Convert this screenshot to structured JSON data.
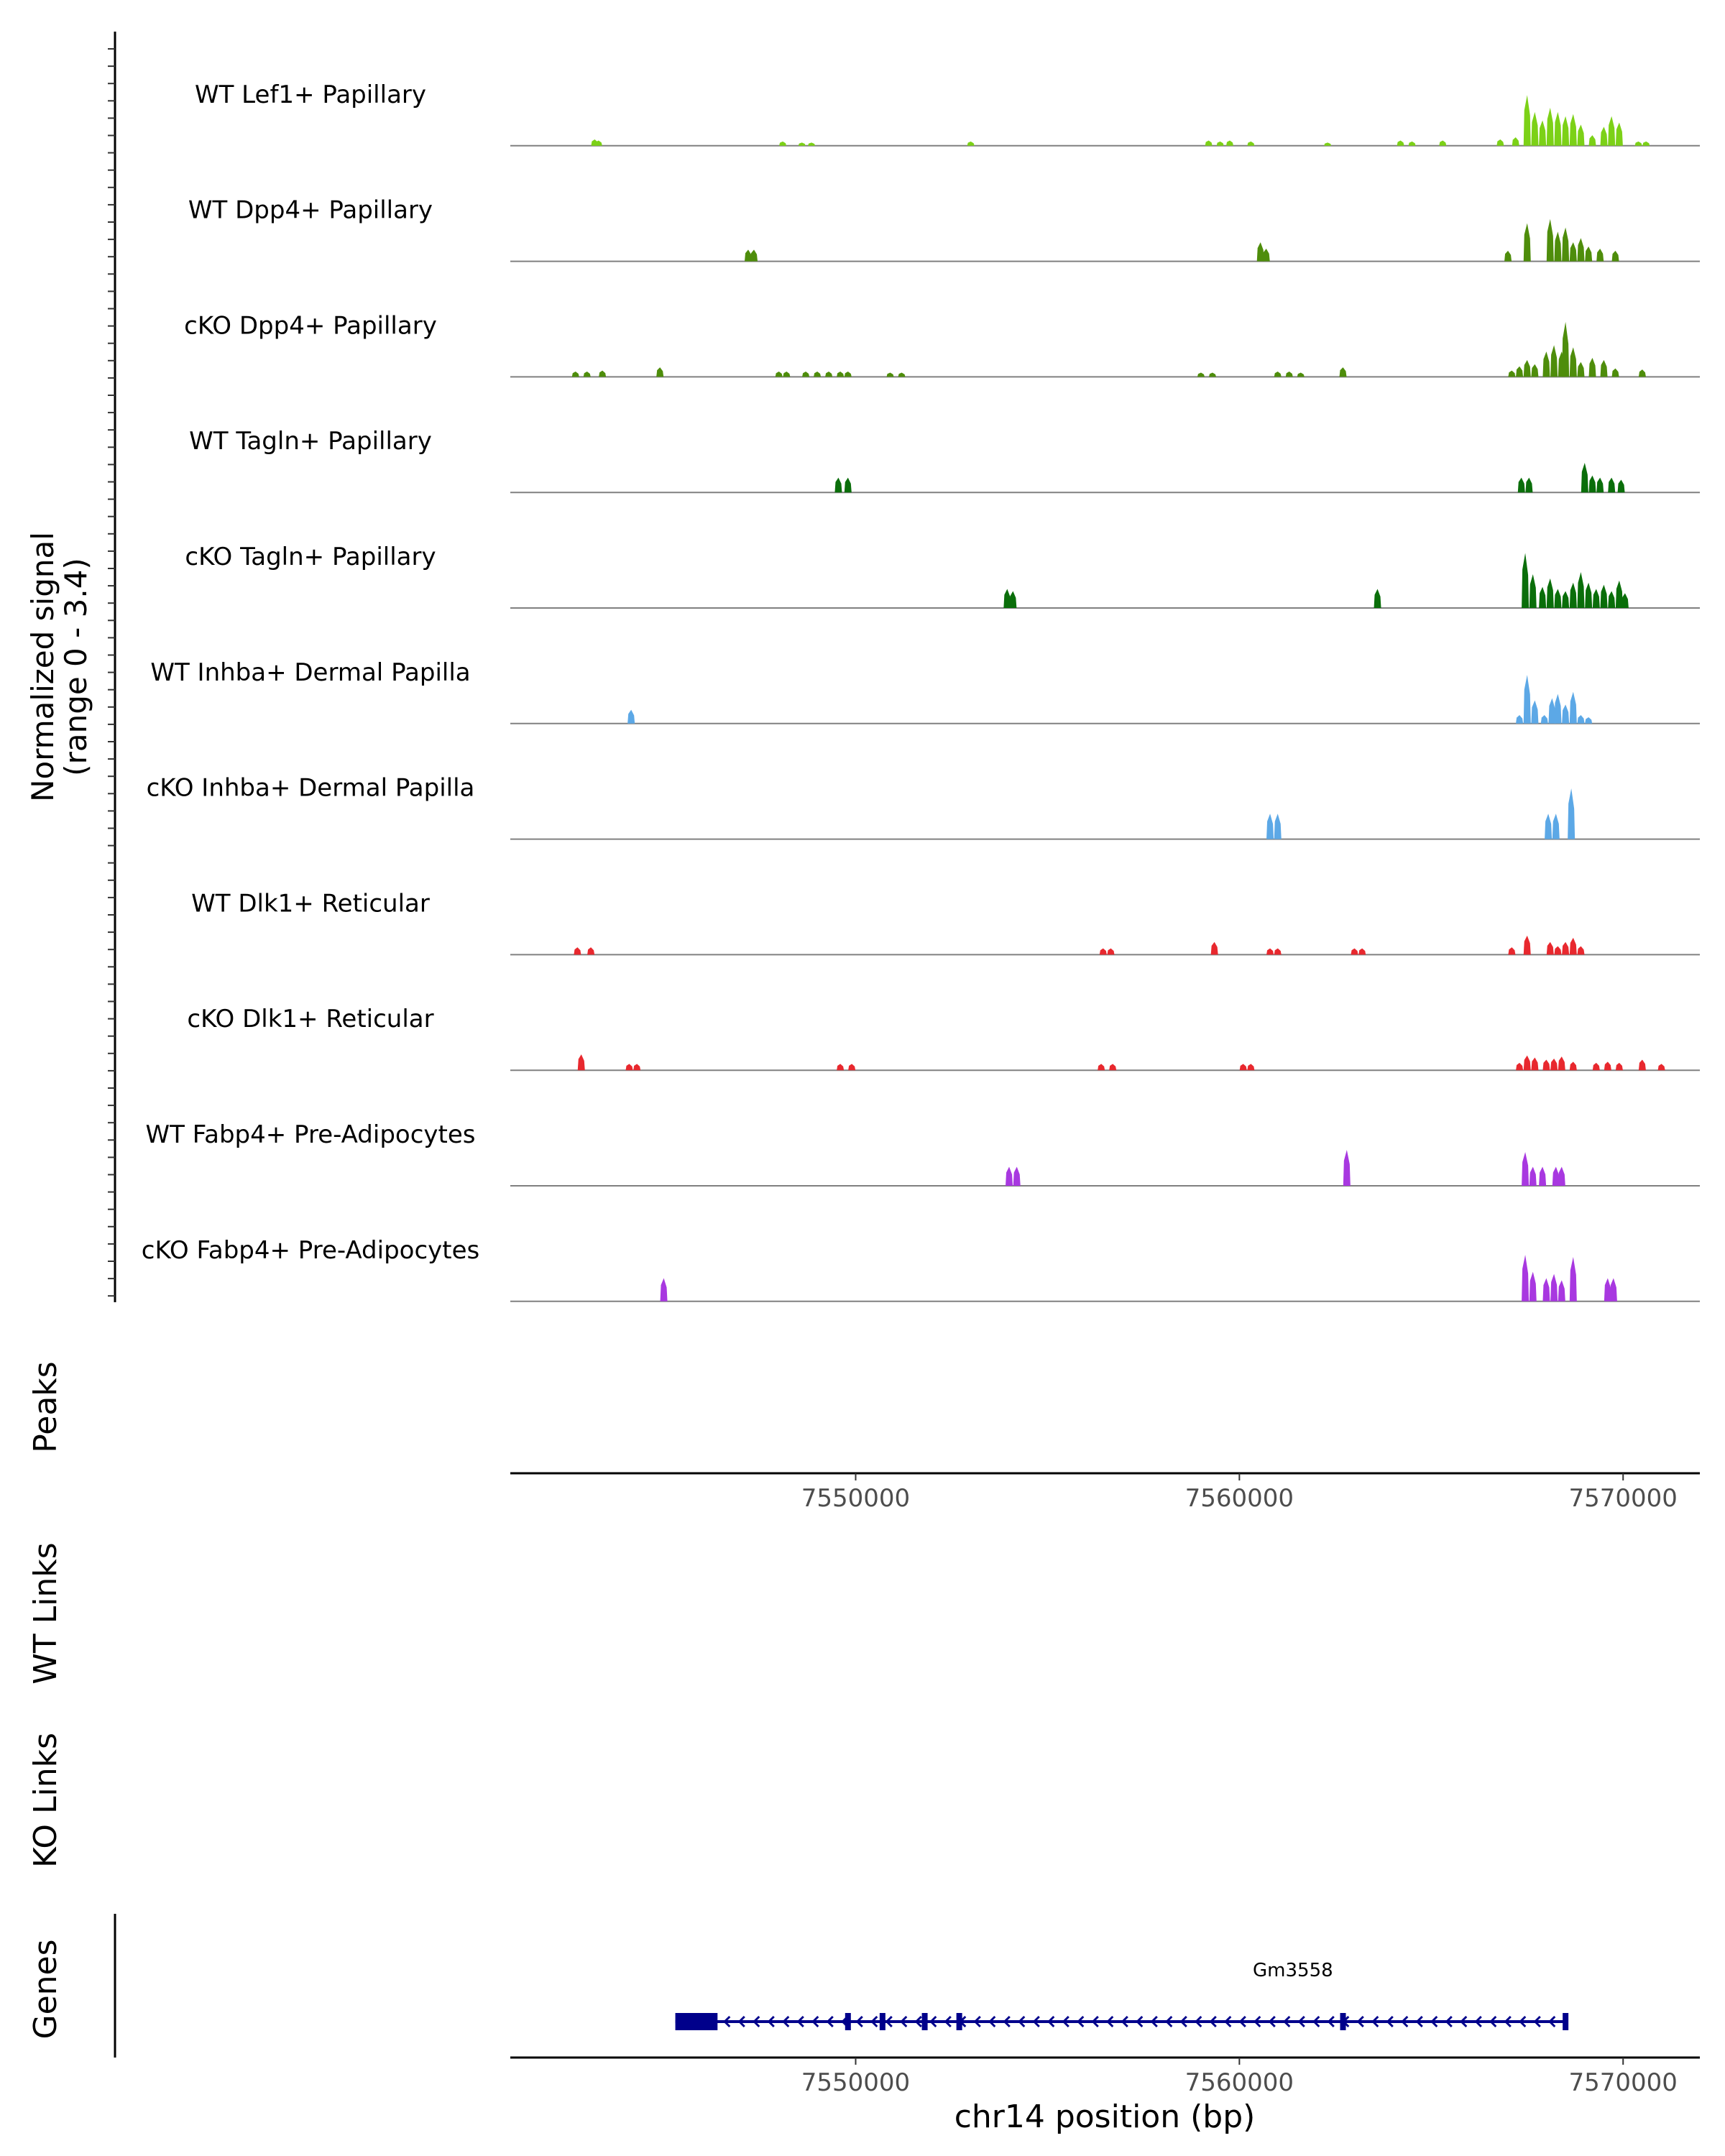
{
  "chart_data": {
    "type": "area",
    "subtype": "genome-coverage-tracks",
    "chromosome": "chr14",
    "xlim": [
      7541000,
      7572000
    ],
    "xticks": [
      7550000,
      7560000,
      7570000
    ],
    "xtick_labels": [
      "7550000",
      "7560000",
      "7570000"
    ],
    "xlabel": "chr14 position (bp)",
    "ylabel_line1": "Normalized signal",
    "ylabel_line2": "(range 0 - 3.4)",
    "ylim": [
      0,
      3.4
    ],
    "panel_labels": {
      "peaks": "Peaks",
      "wt_links": "WT Links",
      "ko_links": "KO Links",
      "genes": "Genes"
    },
    "tracks": [
      {
        "name": "WT Lef1+ Papillary",
        "color": "#7CD117",
        "peaks": [
          [
            7543200,
            0.3
          ],
          [
            7543300,
            0.25
          ],
          [
            7548100,
            0.2
          ],
          [
            7548600,
            0.15
          ],
          [
            7548850,
            0.15
          ],
          [
            7553000,
            0.2
          ],
          [
            7559200,
            0.25
          ],
          [
            7559500,
            0.2
          ],
          [
            7559750,
            0.25
          ],
          [
            7560300,
            0.2
          ],
          [
            7562300,
            0.15
          ],
          [
            7564200,
            0.25
          ],
          [
            7564500,
            0.2
          ],
          [
            7565300,
            0.25
          ],
          [
            7566800,
            0.3
          ],
          [
            7567200,
            0.4
          ],
          [
            7567500,
            2.4
          ],
          [
            7567700,
            1.6
          ],
          [
            7567900,
            1.2
          ],
          [
            7568100,
            1.8
          ],
          [
            7568300,
            1.6
          ],
          [
            7568500,
            1.4
          ],
          [
            7568700,
            1.5
          ],
          [
            7568900,
            1.0
          ],
          [
            7569200,
            0.5
          ],
          [
            7569500,
            0.9
          ],
          [
            7569700,
            1.4
          ],
          [
            7569900,
            1.1
          ],
          [
            7570400,
            0.2
          ],
          [
            7570600,
            0.2
          ]
        ]
      },
      {
        "name": "WT Dpp4+ Papillary",
        "color": "#4E8D0B",
        "peaks": [
          [
            7547200,
            0.55
          ],
          [
            7547350,
            0.55
          ],
          [
            7560550,
            0.9
          ],
          [
            7560700,
            0.6
          ],
          [
            7567000,
            0.5
          ],
          [
            7567500,
            1.8
          ],
          [
            7568100,
            2.0
          ],
          [
            7568300,
            1.4
          ],
          [
            7568500,
            1.6
          ],
          [
            7568700,
            0.9
          ],
          [
            7568900,
            1.1
          ],
          [
            7569100,
            0.7
          ],
          [
            7569400,
            0.6
          ],
          [
            7569800,
            0.5
          ]
        ]
      },
      {
        "name": "cKO Dpp4+ Papillary",
        "color": "#4E8D0B",
        "peaks": [
          [
            7542700,
            0.25
          ],
          [
            7543000,
            0.25
          ],
          [
            7543400,
            0.3
          ],
          [
            7544900,
            0.45
          ],
          [
            7548000,
            0.25
          ],
          [
            7548200,
            0.25
          ],
          [
            7548700,
            0.25
          ],
          [
            7549000,
            0.25
          ],
          [
            7549300,
            0.25
          ],
          [
            7549600,
            0.25
          ],
          [
            7549800,
            0.25
          ],
          [
            7550900,
            0.2
          ],
          [
            7551200,
            0.2
          ],
          [
            7559000,
            0.2
          ],
          [
            7559300,
            0.2
          ],
          [
            7561000,
            0.25
          ],
          [
            7561300,
            0.25
          ],
          [
            7561600,
            0.2
          ],
          [
            7562700,
            0.45
          ],
          [
            7567100,
            0.3
          ],
          [
            7567300,
            0.5
          ],
          [
            7567500,
            0.8
          ],
          [
            7567700,
            0.6
          ],
          [
            7568000,
            1.2
          ],
          [
            7568200,
            1.5
          ],
          [
            7568400,
            1.2
          ],
          [
            7568500,
            2.6
          ],
          [
            7568700,
            1.4
          ],
          [
            7568900,
            0.7
          ],
          [
            7569200,
            0.9
          ],
          [
            7569500,
            0.8
          ],
          [
            7569800,
            0.4
          ],
          [
            7570500,
            0.35
          ]
        ]
      },
      {
        "name": "WT Tagln+ Papillary",
        "color": "#0A6E0A",
        "peaks": [
          [
            7549550,
            0.7
          ],
          [
            7549800,
            0.7
          ],
          [
            7567350,
            0.7
          ],
          [
            7567550,
            0.7
          ],
          [
            7569000,
            1.4
          ],
          [
            7569200,
            0.8
          ],
          [
            7569400,
            0.7
          ],
          [
            7569700,
            0.7
          ],
          [
            7569950,
            0.6
          ]
        ]
      },
      {
        "name": "cKO Tagln+ Papillary",
        "color": "#0A6E0A",
        "peaks": [
          [
            7553950,
            0.9
          ],
          [
            7554100,
            0.8
          ],
          [
            7563600,
            0.9
          ],
          [
            7567450,
            2.6
          ],
          [
            7567650,
            1.6
          ],
          [
            7567900,
            1.0
          ],
          [
            7568100,
            1.4
          ],
          [
            7568300,
            0.9
          ],
          [
            7568500,
            0.8
          ],
          [
            7568700,
            1.2
          ],
          [
            7568900,
            1.7
          ],
          [
            7569100,
            1.2
          ],
          [
            7569300,
            0.9
          ],
          [
            7569500,
            1.1
          ],
          [
            7569700,
            0.8
          ],
          [
            7569900,
            1.3
          ],
          [
            7570050,
            0.7
          ]
        ]
      },
      {
        "name": "WT Inhba+ Dermal Papilla",
        "color": "#5CA8E6",
        "peaks": [
          [
            7544150,
            0.65
          ],
          [
            7567300,
            0.4
          ],
          [
            7567500,
            2.3
          ],
          [
            7567700,
            1.1
          ],
          [
            7567950,
            0.4
          ],
          [
            7568150,
            1.2
          ],
          [
            7568300,
            1.4
          ],
          [
            7568500,
            0.9
          ],
          [
            7568700,
            1.5
          ],
          [
            7568900,
            0.4
          ],
          [
            7569100,
            0.3
          ]
        ]
      },
      {
        "name": "cKO Inhba+ Dermal Papilla",
        "color": "#5CA8E6",
        "peaks": [
          [
            7560800,
            1.2
          ],
          [
            7561000,
            1.2
          ],
          [
            7568050,
            1.2
          ],
          [
            7568250,
            1.2
          ],
          [
            7568650,
            2.4
          ]
        ]
      },
      {
        "name": "WT Dlk1+ Reticular",
        "color": "#E8282E",
        "peaks": [
          [
            7542750,
            0.35
          ],
          [
            7543100,
            0.35
          ],
          [
            7556450,
            0.3
          ],
          [
            7556650,
            0.3
          ],
          [
            7559350,
            0.6
          ],
          [
            7560800,
            0.3
          ],
          [
            7561000,
            0.3
          ],
          [
            7563000,
            0.3
          ],
          [
            7563200,
            0.3
          ],
          [
            7567100,
            0.35
          ],
          [
            7567500,
            0.9
          ],
          [
            7568100,
            0.6
          ],
          [
            7568300,
            0.4
          ],
          [
            7568500,
            0.6
          ],
          [
            7568700,
            0.8
          ],
          [
            7568900,
            0.4
          ]
        ]
      },
      {
        "name": "cKO Dlk1+ Reticular",
        "color": "#E8282E",
        "peaks": [
          [
            7542850,
            0.75
          ],
          [
            7544100,
            0.3
          ],
          [
            7544300,
            0.3
          ],
          [
            7549600,
            0.3
          ],
          [
            7549900,
            0.3
          ],
          [
            7556400,
            0.3
          ],
          [
            7556700,
            0.3
          ],
          [
            7560100,
            0.3
          ],
          [
            7560300,
            0.3
          ],
          [
            7567300,
            0.35
          ],
          [
            7567500,
            0.7
          ],
          [
            7567700,
            0.6
          ],
          [
            7568000,
            0.5
          ],
          [
            7568200,
            0.55
          ],
          [
            7568400,
            0.65
          ],
          [
            7568700,
            0.4
          ],
          [
            7569300,
            0.35
          ],
          [
            7569600,
            0.4
          ],
          [
            7569900,
            0.35
          ],
          [
            7570500,
            0.5
          ],
          [
            7571000,
            0.3
          ]
        ]
      },
      {
        "name": "WT Fabp4+ Pre-Adipocytes",
        "color": "#A838E0",
        "peaks": [
          [
            7554000,
            0.9
          ],
          [
            7554200,
            0.9
          ],
          [
            7562800,
            1.7
          ],
          [
            7567450,
            1.6
          ],
          [
            7567650,
            0.9
          ],
          [
            7567900,
            0.9
          ],
          [
            7568250,
            0.9
          ],
          [
            7568400,
            0.9
          ]
        ]
      },
      {
        "name": "cKO Fabp4+ Pre-Adipocytes",
        "color": "#A838E0",
        "peaks": [
          [
            7545000,
            1.1
          ],
          [
            7567450,
            2.2
          ],
          [
            7567650,
            1.4
          ],
          [
            7568000,
            1.1
          ],
          [
            7568200,
            1.3
          ],
          [
            7568400,
            1.0
          ],
          [
            7568700,
            2.1
          ],
          [
            7569600,
            1.1
          ],
          [
            7569750,
            1.1
          ]
        ]
      }
    ],
    "gene": {
      "name": "Gm3558",
      "color": "#00008B",
      "strand": "-",
      "start": 7545300,
      "end": 7568500,
      "utr": [
        [
          7545300,
          7546400
        ]
      ],
      "exons": [
        7549800,
        7550700,
        7551800,
        7552700,
        7562700,
        7568500
      ]
    }
  }
}
